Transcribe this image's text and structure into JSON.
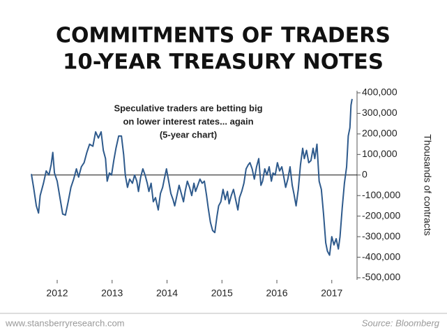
{
  "chart_data": {
    "type": "line",
    "title": "COMMITMENTS OF TRADERS",
    "subtitle": "10-YEAR TREASURY NOTES",
    "annotation": [
      "Speculative traders are betting big",
      "on lower interest rates... again",
      "(5-year chart)"
    ],
    "y_label": "Thousands of contracts",
    "credit": "www.stansberryresearch.com",
    "source": "Source: Bloomberg",
    "color": "#2e5a8c",
    "zero_line": true,
    "grid": false,
    "xlim": [
      2011.53,
      2017.46
    ],
    "xticks": [
      2012,
      2013,
      2014,
      2015,
      2016,
      2017
    ],
    "ylim": [
      -500000,
      400000
    ],
    "yticks": [
      {
        "value": 400000,
        "label": "400,000"
      },
      {
        "value": 300000,
        "label": "300,000"
      },
      {
        "value": 200000,
        "label": "200,000"
      },
      {
        "value": 100000,
        "label": "100,000"
      },
      0,
      {
        "value": -100000,
        "label": "-100,000"
      },
      {
        "value": -200000,
        "label": "-200,000"
      },
      {
        "value": -300000,
        "label": "-300,000"
      },
      {
        "value": -400000,
        "label": "-400,000"
      },
      {
        "value": -500000,
        "label": "-500,000"
      }
    ],
    "x": [
      2011.53,
      2011.57,
      2011.62,
      2011.66,
      2011.69,
      2011.75,
      2011.8,
      2011.85,
      2011.89,
      2011.92,
      2011.95,
      2012.0,
      2012.05,
      2012.1,
      2012.15,
      2012.2,
      2012.25,
      2012.3,
      2012.35,
      2012.39,
      2012.44,
      2012.49,
      2012.54,
      2012.59,
      2012.65,
      2012.7,
      2012.75,
      2012.8,
      2012.84,
      2012.88,
      2012.91,
      2012.95,
      2012.99,
      2013.03,
      2013.07,
      2013.12,
      2013.17,
      2013.21,
      2013.24,
      2013.28,
      2013.32,
      2013.37,
      2013.41,
      2013.45,
      2013.48,
      2013.52,
      2013.56,
      2013.6,
      2013.64,
      2013.67,
      2013.71,
      2013.75,
      2013.79,
      2013.84,
      2013.88,
      2013.92,
      2013.95,
      2013.99,
      2014.03,
      2014.07,
      2014.11,
      2014.14,
      2014.18,
      2014.22,
      2014.26,
      2014.3,
      2014.33,
      2014.37,
      2014.41,
      2014.45,
      2014.49,
      2014.52,
      2014.56,
      2014.6,
      2014.64,
      2014.68,
      2014.72,
      2014.75,
      2014.79,
      2014.83,
      2014.87,
      2014.91,
      2014.94,
      2014.98,
      2015.02,
      2015.06,
      2015.1,
      2015.13,
      2015.17,
      2015.21,
      2015.25,
      2015.29,
      2015.32,
      2015.36,
      2015.4,
      2015.44,
      2015.48,
      2015.51,
      2015.55,
      2015.59,
      2015.63,
      2015.67,
      2015.71,
      2015.74,
      2015.78,
      2015.82,
      2015.86,
      2015.9,
      2015.93,
      2015.97,
      2016.01,
      2016.05,
      2016.09,
      2016.12,
      2016.16,
      2016.2,
      2016.24,
      2016.28,
      2016.31,
      2016.35,
      2016.39,
      2016.43,
      2016.47,
      2016.5,
      2016.54,
      2016.58,
      2016.62,
      2016.66,
      2016.69,
      2016.73,
      2016.77,
      2016.81,
      2016.85,
      2016.89,
      2016.92,
      2016.96,
      2017.0,
      2017.04,
      2017.08,
      2017.12,
      2017.15,
      2017.19,
      2017.23,
      2017.27,
      2017.3,
      2017.33,
      2017.35,
      2017.37
    ],
    "values": [
      5000,
      -60000,
      -150000,
      -185000,
      -100000,
      -40000,
      20000,
      0,
      50000,
      110000,
      10000,
      -30000,
      -110000,
      -190000,
      -195000,
      -130000,
      -60000,
      -20000,
      30000,
      -10000,
      40000,
      60000,
      110000,
      150000,
      140000,
      210000,
      180000,
      210000,
      120000,
      80000,
      -30000,
      10000,
      0,
      70000,
      130000,
      190000,
      190000,
      100000,
      0,
      -60000,
      -20000,
      -40000,
      0,
      -30000,
      -80000,
      -10000,
      30000,
      0,
      -40000,
      -80000,
      -40000,
      -130000,
      -110000,
      -170000,
      -90000,
      -60000,
      -20000,
      30000,
      -30000,
      -90000,
      -120000,
      -150000,
      -100000,
      -50000,
      -90000,
      -130000,
      -80000,
      -30000,
      -60000,
      -100000,
      -40000,
      -80000,
      -50000,
      -20000,
      -40000,
      -30000,
      -100000,
      -160000,
      -230000,
      -270000,
      -280000,
      -200000,
      -150000,
      -130000,
      -70000,
      -120000,
      -80000,
      -140000,
      -100000,
      -70000,
      -120000,
      -170000,
      -110000,
      -80000,
      -40000,
      30000,
      50000,
      60000,
      30000,
      -20000,
      40000,
      80000,
      -50000,
      -30000,
      30000,
      0,
      40000,
      -30000,
      10000,
      0,
      60000,
      20000,
      40000,
      0,
      -60000,
      -20000,
      40000,
      -50000,
      -90000,
      -150000,
      -70000,
      50000,
      130000,
      80000,
      120000,
      60000,
      70000,
      130000,
      80000,
      150000,
      -30000,
      -70000,
      -190000,
      -330000,
      -370000,
      -390000,
      -300000,
      -340000,
      -310000,
      -360000,
      -300000,
      -160000,
      -40000,
      40000,
      190000,
      230000,
      340000,
      370000
    ]
  }
}
